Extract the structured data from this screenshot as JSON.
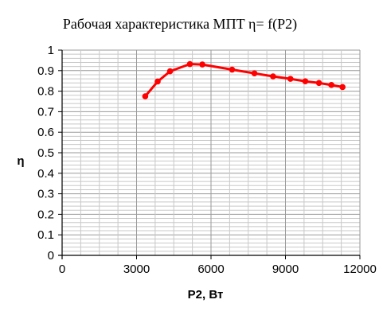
{
  "chart_data": {
    "type": "line",
    "title": "Рабочая характеристика  МПТ  η= f(P2)",
    "xlabel": "P2, Вт",
    "ylabel": "η",
    "xlim": [
      0,
      12000
    ],
    "ylim": [
      0,
      1
    ],
    "x_ticks": [
      0,
      3000,
      6000,
      9000,
      12000
    ],
    "x_tick_labels": [
      "0",
      "3000",
      "6000",
      "9000",
      "12000"
    ],
    "y_ticks": [
      0,
      0.1,
      0.2,
      0.3,
      0.4,
      0.5,
      0.6,
      0.7,
      0.8,
      0.9,
      1
    ],
    "y_tick_labels": [
      "0",
      "0.1",
      "0.2",
      "0.3",
      "0.4",
      "0.5",
      "0.6",
      "0.7",
      "0.8",
      "0.9",
      "1"
    ],
    "grid": true,
    "legend": "none",
    "series": [
      {
        "color": "#ff0000",
        "x": [
          3350,
          3850,
          4350,
          5150,
          5650,
          6850,
          7750,
          8500,
          9200,
          9800,
          10350,
          10850,
          11300
        ],
        "y": [
          0.775,
          0.847,
          0.897,
          0.932,
          0.93,
          0.905,
          0.887,
          0.872,
          0.86,
          0.848,
          0.84,
          0.83,
          0.82
        ]
      }
    ]
  }
}
